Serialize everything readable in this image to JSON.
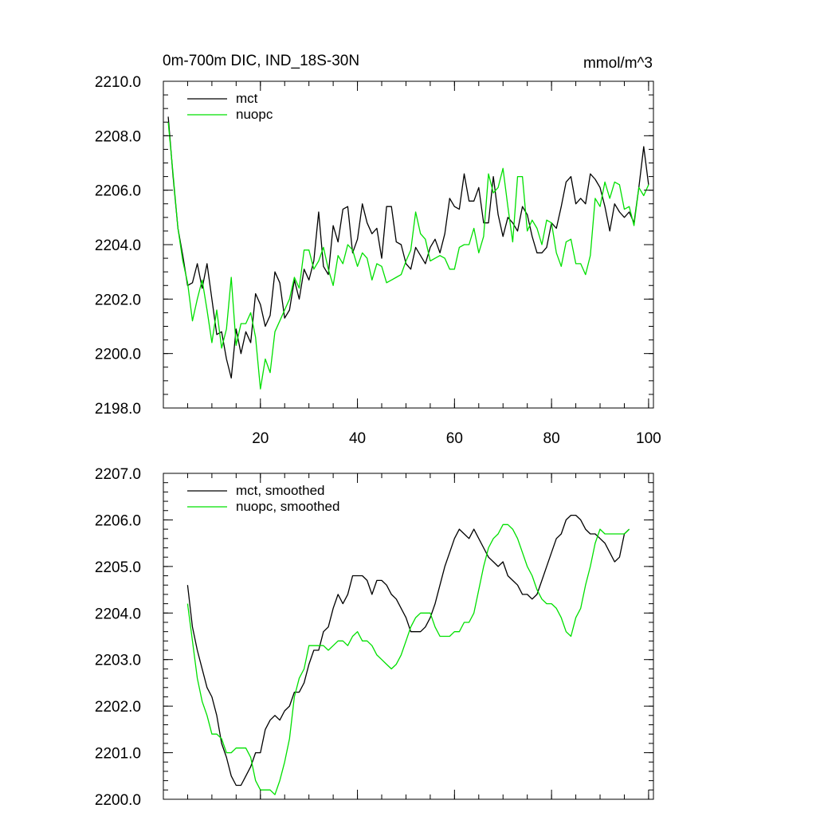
{
  "chart_data": [
    {
      "type": "line",
      "title": "0m-700m DIC, IND_18S-30N",
      "units": "mmol/m^3",
      "xlabel": "",
      "ylabel": "",
      "xlim": [
        0,
        101
      ],
      "ylim": [
        2198.0,
        2210.0
      ],
      "x_ticks": [
        20,
        40,
        60,
        80,
        100
      ],
      "x_tick_labels": [
        "20",
        "40",
        "60",
        "80",
        "100"
      ],
      "y_ticks": [
        2198.0,
        2200.0,
        2202.0,
        2204.0,
        2206.0,
        2208.0,
        2210.0
      ],
      "y_tick_labels": [
        "2198.0",
        "2200.0",
        "2202.0",
        "2204.0",
        "2206.0",
        "2208.0",
        "2210.0"
      ],
      "legend_position": "top-left",
      "x_start": 1,
      "series": [
        {
          "name": "mct",
          "color": "#000000",
          "values": [
            2208.7,
            2206.5,
            2204.6,
            2203.6,
            2202.5,
            2202.6,
            2203.3,
            2202.4,
            2203.3,
            2202.0,
            2200.7,
            2200.8,
            2199.8,
            2199.1,
            2200.9,
            2200.0,
            2200.8,
            2200.4,
            2202.2,
            2201.8,
            2201.0,
            2201.4,
            2203.0,
            2202.6,
            2201.3,
            2201.6,
            2202.7,
            2202.0,
            2203.1,
            2202.7,
            2203.4,
            2205.2,
            2203.2,
            2202.9,
            2204.7,
            2204.1,
            2205.3,
            2205.4,
            2203.7,
            2204.2,
            2205.5,
            2204.8,
            2204.4,
            2204.6,
            2203.5,
            2205.4,
            2205.4,
            2204.1,
            2204.0,
            2203.3,
            2203.1,
            2203.9,
            2203.6,
            2203.3,
            2203.9,
            2204.2,
            2203.7,
            2204.4,
            2205.7,
            2205.4,
            2205.3,
            2206.6,
            2205.6,
            2205.6,
            2206.1,
            2204.8,
            2204.8,
            2206.5,
            2205.1,
            2204.3,
            2205.0,
            2204.8,
            2204.5,
            2205.4,
            2205.1,
            2204.3,
            2203.7,
            2203.7,
            2203.9,
            2204.8,
            2204.6,
            2205.4,
            2206.3,
            2206.5,
            2205.5,
            2205.7,
            2205.5,
            2206.6,
            2206.4,
            2206.1,
            2205.4,
            2204.5,
            2205.5,
            2205.2,
            2205.0,
            2205.2,
            2204.8,
            2206.1,
            2207.6,
            2206.2
          ]
        },
        {
          "name": "nuopc",
          "color": "#00e000",
          "values": [
            2208.5,
            2206.6,
            2204.6,
            2203.4,
            2202.6,
            2201.2,
            2202.0,
            2202.7,
            2201.6,
            2200.4,
            2201.6,
            2200.2,
            2200.9,
            2202.8,
            2200.3,
            2201.1,
            2201.1,
            2201.5,
            2200.6,
            2198.7,
            2199.8,
            2199.3,
            2200.8,
            2201.2,
            2201.6,
            2202.0,
            2202.8,
            2202.4,
            2203.8,
            2203.8,
            2203.1,
            2203.4,
            2203.9,
            2203.1,
            2202.5,
            2203.6,
            2203.3,
            2204.0,
            2203.8,
            2203.2,
            2203.7,
            2203.5,
            2202.7,
            2203.3,
            2203.2,
            2202.6,
            2202.7,
            2202.8,
            2202.9,
            2203.4,
            2203.8,
            2205.2,
            2204.4,
            2204.2,
            2203.4,
            2203.5,
            2203.6,
            2203.5,
            2203.1,
            2203.1,
            2203.9,
            2204.0,
            2204.0,
            2204.6,
            2203.7,
            2204.3,
            2206.6,
            2205.9,
            2206.1,
            2206.8,
            2205.4,
            2204.1,
            2206.5,
            2206.5,
            2204.5,
            2204.9,
            2204.6,
            2204.0,
            2204.9,
            2204.8,
            2203.7,
            2203.2,
            2204.1,
            2204.2,
            2203.3,
            2203.3,
            2202.9,
            2203.6,
            2205.7,
            2205.4,
            2206.3,
            2205.7,
            2206.3,
            2206.2,
            2205.3,
            2205.4,
            2204.7,
            2206.1,
            2205.8,
            2206.2
          ]
        }
      ]
    },
    {
      "type": "line",
      "title": "",
      "xlabel": "",
      "ylabel": "",
      "xlim": [
        0,
        101
      ],
      "ylim": [
        2200.0,
        2207.0
      ],
      "x_ticks": [
        20,
        40,
        60,
        80,
        100
      ],
      "x_tick_labels": [],
      "y_ticks": [
        2200.0,
        2201.0,
        2202.0,
        2203.0,
        2204.0,
        2205.0,
        2206.0,
        2207.0
      ],
      "y_tick_labels": [
        "2200.0",
        "2201.0",
        "2202.0",
        "2203.0",
        "2204.0",
        "2205.0",
        "2206.0",
        "2207.0"
      ],
      "legend_position": "top-left",
      "x_start": 5,
      "series": [
        {
          "name": "mct, smoothed",
          "color": "#000000",
          "values": [
            2204.6,
            2203.7,
            2203.2,
            2202.8,
            2202.4,
            2202.2,
            2201.8,
            2201.2,
            2200.9,
            2200.5,
            2200.3,
            2200.3,
            2200.5,
            2200.7,
            2201.0,
            2201.0,
            2201.5,
            2201.7,
            2201.8,
            2201.7,
            2201.9,
            2202.0,
            2202.3,
            2202.3,
            2202.5,
            2202.9,
            2203.2,
            2203.2,
            2203.6,
            2203.7,
            2204.1,
            2204.4,
            2204.2,
            2204.4,
            2204.8,
            2204.8,
            2204.8,
            2204.7,
            2204.4,
            2204.7,
            2204.7,
            2204.6,
            2204.4,
            2204.3,
            2204.1,
            2203.9,
            2203.6,
            2203.6,
            2203.6,
            2203.7,
            2203.9,
            2204.2,
            2204.6,
            2205.0,
            2205.3,
            2205.6,
            2205.8,
            2205.7,
            2205.6,
            2205.8,
            2205.6,
            2205.4,
            2205.2,
            2205.1,
            2205.0,
            2205.1,
            2204.8,
            2204.7,
            2204.6,
            2204.4,
            2204.4,
            2204.3,
            2204.4,
            2204.7,
            2205.0,
            2205.3,
            2205.6,
            2205.7,
            2206.0,
            2206.1,
            2206.1,
            2206.0,
            2205.8,
            2205.7,
            2205.7,
            2205.6,
            2205.5,
            2205.3,
            2205.1,
            2205.2,
            2205.7,
            2205.8
          ]
        },
        {
          "name": "nuopc, smoothed",
          "color": "#00e000",
          "values": [
            2204.2,
            2203.4,
            2202.6,
            2202.1,
            2201.8,
            2201.4,
            2201.4,
            2201.3,
            2201.0,
            2201.0,
            2201.1,
            2201.1,
            2201.1,
            2200.9,
            2200.4,
            2200.2,
            2200.2,
            2200.2,
            2200.1,
            2200.4,
            2200.8,
            2201.3,
            2202.2,
            2202.6,
            2202.8,
            2203.3,
            2203.3,
            2203.3,
            2203.3,
            2203.2,
            2203.3,
            2203.4,
            2203.4,
            2203.3,
            2203.5,
            2203.6,
            2203.4,
            2203.4,
            2203.3,
            2203.1,
            2203.0,
            2202.9,
            2202.8,
            2202.9,
            2203.1,
            2203.4,
            2203.7,
            2203.9,
            2204.0,
            2204.0,
            2204.0,
            2203.7,
            2203.5,
            2203.5,
            2203.5,
            2203.6,
            2203.6,
            2203.8,
            2203.8,
            2204.0,
            2204.5,
            2205.0,
            2205.4,
            2205.6,
            2205.7,
            2205.9,
            2205.9,
            2205.8,
            2205.6,
            2205.3,
            2205.0,
            2204.8,
            2204.5,
            2204.3,
            2204.2,
            2204.2,
            2204.1,
            2203.9,
            2203.6,
            2203.5,
            2203.9,
            2204.1,
            2204.6,
            2205.0,
            2205.5,
            2205.8,
            2205.7,
            2205.7,
            2205.7,
            2205.7,
            2205.7,
            2205.8
          ]
        }
      ]
    }
  ]
}
